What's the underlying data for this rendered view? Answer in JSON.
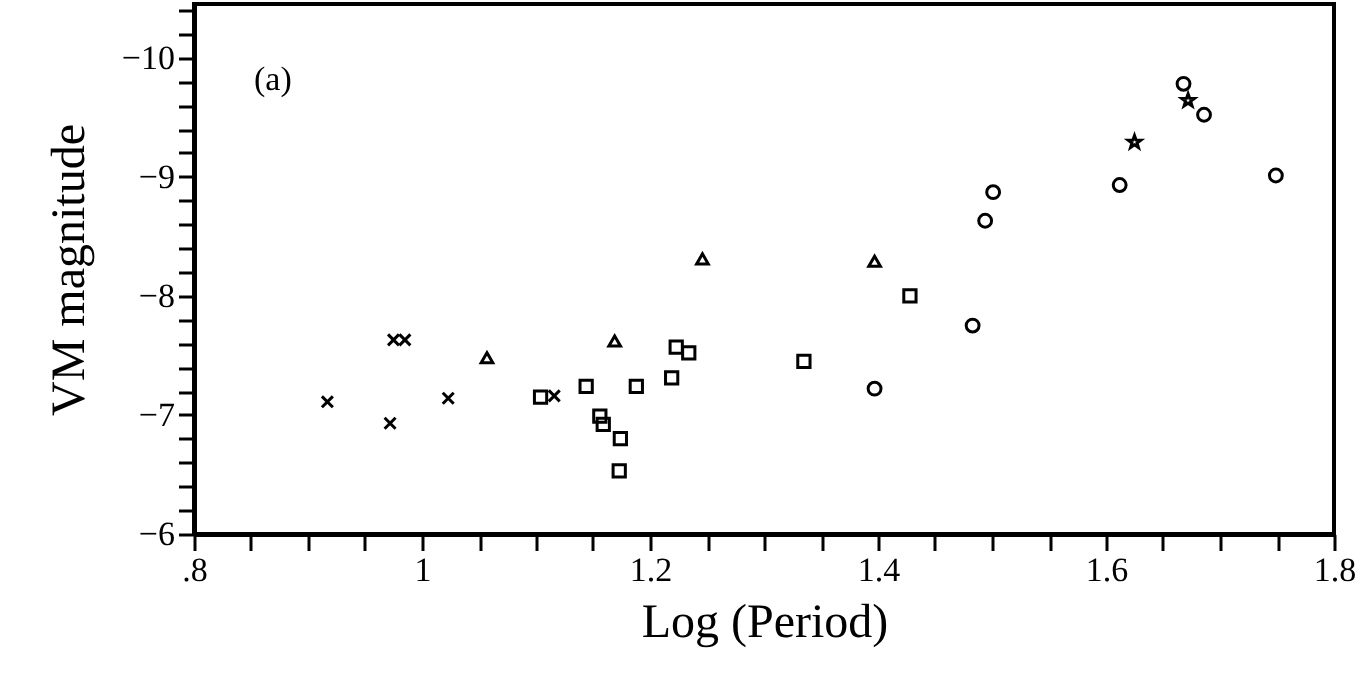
{
  "chart_data": {
    "type": "scatter",
    "xlabel": "Log (Period)",
    "ylabel": "VM magnitude",
    "annotations": [
      "(a)"
    ],
    "xlim": [
      0.8,
      1.8
    ],
    "ylim": [
      -6,
      -10.45
    ],
    "xticks": [
      {
        "value": 0.8,
        "label": ".8"
      },
      {
        "value": 0.85,
        "label": null
      },
      {
        "value": 0.9,
        "label": null
      },
      {
        "value": 0.95,
        "label": null
      },
      1,
      {
        "value": 1.05,
        "label": null
      },
      {
        "value": 1.1,
        "label": null
      },
      {
        "value": 1.15,
        "label": null
      },
      1.2,
      {
        "value": 1.25,
        "label": null
      },
      {
        "value": 1.3,
        "label": null
      },
      {
        "value": 1.35,
        "label": null
      },
      1.4,
      {
        "value": 1.45,
        "label": null
      },
      {
        "value": 1.5,
        "label": null
      },
      {
        "value": 1.55,
        "label": null
      },
      1.6,
      {
        "value": 1.65,
        "label": null
      },
      {
        "value": 1.7,
        "label": null
      },
      {
        "value": 1.75,
        "label": null
      },
      1.8
    ],
    "yticks": [
      -6,
      {
        "value": -6.2,
        "label": null
      },
      {
        "value": -6.4,
        "label": null
      },
      {
        "value": -6.6,
        "label": null
      },
      {
        "value": -6.8,
        "label": null
      },
      -7,
      {
        "value": -7.2,
        "label": null
      },
      {
        "value": -7.4,
        "label": null
      },
      {
        "value": -7.6,
        "label": null
      },
      {
        "value": -7.8,
        "label": null
      },
      -8,
      {
        "value": -8.2,
        "label": null
      },
      {
        "value": -8.4,
        "label": null
      },
      {
        "value": -8.6,
        "label": null
      },
      {
        "value": -8.8,
        "label": null
      },
      -9,
      {
        "value": -9.2,
        "label": null
      },
      {
        "value": -9.4,
        "label": null
      },
      {
        "value": -9.6,
        "label": null
      },
      {
        "value": -9.8,
        "label": null
      },
      -10,
      {
        "value": -10.2,
        "label": null
      },
      {
        "value": -10.4,
        "label": null
      }
    ],
    "grid": false,
    "series": [
      {
        "color": "#000000",
        "marker": "cross",
        "x": [
          0.917,
          0.972,
          0.975,
          0.985,
          1.023,
          1.116
        ],
        "values": [
          -7.11,
          -6.93,
          -7.63,
          -7.63,
          -7.14,
          -7.16
        ]
      },
      {
        "color": "#000000",
        "marker": "triangle",
        "x": [
          1.057,
          1.169,
          1.246,
          1.397
        ],
        "values": [
          -7.48,
          -7.62,
          -8.31,
          -8.29
        ]
      },
      {
        "color": "#000000",
        "marker": "square",
        "x": [
          1.104,
          1.144,
          1.159,
          1.156,
          1.174,
          1.173,
          1.188,
          1.219,
          1.223,
          1.234,
          1.335,
          1.428
        ],
        "values": [
          -7.15,
          -7.24,
          -6.92,
          -6.99,
          -6.8,
          -6.53,
          -7.24,
          -7.31,
          -7.57,
          -7.52,
          -7.45,
          -8.0
        ]
      },
      {
        "color": "#000000",
        "marker": "circle",
        "x": [
          1.397,
          1.483,
          1.494,
          1.501,
          1.612,
          1.668,
          1.686,
          1.749
        ],
        "values": [
          -7.22,
          -7.75,
          -8.63,
          -8.87,
          -8.93,
          -9.78,
          -9.52,
          -9.01
        ]
      },
      {
        "color": "#000000",
        "marker": "star",
        "x": [
          1.625,
          1.672
        ],
        "values": [
          -9.29,
          -9.64
        ]
      }
    ]
  }
}
